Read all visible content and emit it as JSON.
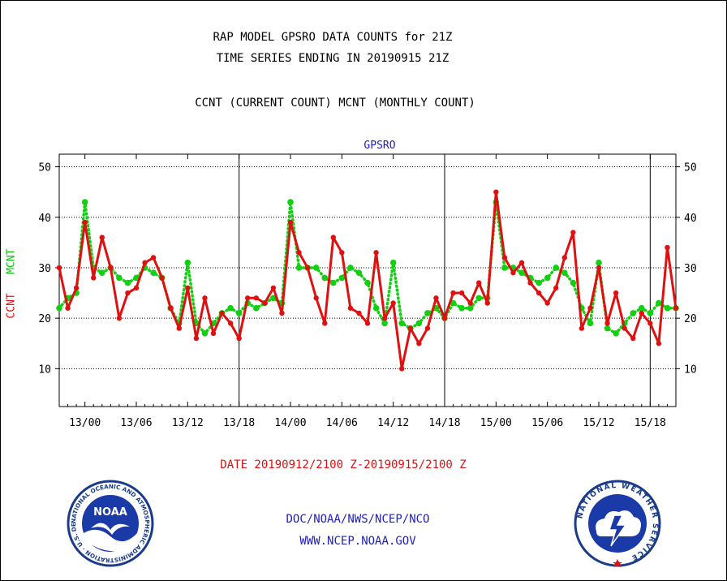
{
  "header": {
    "title_line1": "RAP MODEL GPSRO DATA COUNTS for 21Z",
    "title_line2": "TIME SERIES ENDING IN 20190915 21Z",
    "title_line3": "CCNT (CURRENT COUNT) MCNT (MONTHLY COUNT)"
  },
  "footer": {
    "date_range": "DATE 20190912/2100 Z-20190915/2100 Z",
    "org": "DOC/NOAA/NWS/NCEP/NCO",
    "url": "WWW.NCEP.NOAA.GOV"
  },
  "logos": {
    "noaa_text": "NOAA",
    "noaa_ring_text": "NATIONAL OCEANIC AND ATMOSPHERIC ADMINISTRATION · U.S. DEPARTMENT OF COMMERCE ·",
    "nws_ring_text": "NATIONAL WEATHER SERVICE"
  },
  "colors": {
    "ccnt": "#e01010",
    "mcnt": "#10d010",
    "title_blue": "#2020c0"
  },
  "chart_data": {
    "type": "line",
    "title": "GPSRO",
    "ylabel_parts": [
      "CCNT",
      "MCNT"
    ],
    "ylim": [
      2.5,
      52.5
    ],
    "yticks": [
      10,
      20,
      30,
      40,
      50
    ],
    "x_tick_labels": [
      "13/00",
      "13/06",
      "13/12",
      "13/18",
      "14/00",
      "14/06",
      "14/12",
      "14/18",
      "15/00",
      "15/06",
      "15/12",
      "15/18"
    ],
    "x_tick_hours": [
      3,
      9,
      15,
      21,
      27,
      33,
      39,
      45,
      51,
      57,
      63,
      69
    ],
    "day_boundaries_hours": [
      21,
      45,
      69
    ],
    "x_range_hours": [
      0,
      72
    ],
    "x_units": "hours after 20190912/2100 Z",
    "grid": true,
    "series": [
      {
        "name": "CCNT",
        "color": "#e01010",
        "values": [
          30,
          22,
          26,
          39,
          28,
          36,
          30,
          20,
          25,
          26,
          31,
          32,
          28,
          22,
          18,
          26,
          16,
          24,
          17,
          21,
          19,
          16,
          24,
          24,
          23,
          26,
          21,
          39,
          33,
          30,
          24,
          19,
          36,
          33,
          22,
          21,
          19,
          33,
          20,
          23,
          10,
          18,
          15,
          18,
          24,
          20,
          25,
          25,
          23,
          27,
          23,
          45,
          32,
          29,
          31,
          27,
          25,
          23,
          26,
          32,
          37,
          18,
          22,
          30,
          19,
          25,
          18,
          16,
          21,
          19,
          15,
          34,
          22
        ]
      },
      {
        "name": "MCNT",
        "color": "#10d010",
        "values": [
          22,
          24,
          25,
          43,
          30,
          29,
          30,
          28,
          27,
          28,
          30,
          29,
          28,
          22,
          19,
          31,
          19,
          17,
          19,
          21,
          22,
          21,
          23,
          22,
          23,
          24,
          23,
          43,
          30,
          30,
          30,
          28,
          27,
          28,
          30,
          29,
          27,
          22,
          19,
          31,
          19,
          18,
          19,
          21,
          22,
          20,
          23,
          22,
          22,
          24,
          24,
          43,
          30,
          30,
          29,
          28,
          27,
          28,
          30,
          29,
          27,
          22,
          19,
          31,
          18,
          17,
          19,
          21,
          22,
          21,
          23,
          22,
          22
        ]
      }
    ]
  }
}
